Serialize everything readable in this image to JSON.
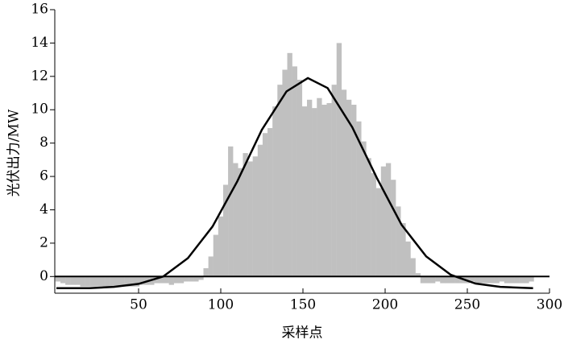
{
  "chart_data": {
    "type": "bar",
    "xlabel": "采样点",
    "ylabel": "光伏出力/MW",
    "xlim": [
      0,
      300
    ],
    "ylim": [
      -1,
      16
    ],
    "xticks": [
      50,
      100,
      150,
      200,
      250,
      300
    ],
    "yticks": [
      0,
      2,
      4,
      6,
      8,
      10,
      12,
      14,
      16
    ],
    "hline": 0,
    "series": [
      {
        "type": "bar",
        "color": "#c0c0c0",
        "x": [
          1,
          4,
          7,
          10,
          13,
          16,
          19,
          22,
          25,
          28,
          31,
          34,
          37,
          40,
          43,
          46,
          49,
          52,
          55,
          58,
          61,
          64,
          67,
          70,
          73,
          76,
          79,
          82,
          85,
          88,
          91,
          94,
          97,
          100,
          103,
          106,
          109,
          112,
          115,
          118,
          121,
          124,
          127,
          130,
          133,
          136,
          139,
          142,
          145,
          148,
          151,
          154,
          157,
          160,
          163,
          166,
          169,
          172,
          175,
          178,
          181,
          184,
          187,
          190,
          193,
          196,
          199,
          202,
          205,
          208,
          211,
          214,
          217,
          220,
          223,
          226,
          229,
          232,
          235,
          238,
          241,
          244,
          247,
          250,
          253,
          256,
          259,
          262,
          265,
          268,
          271,
          274,
          277,
          280,
          283,
          286,
          289
        ],
        "values": [
          -0.3,
          -0.4,
          -0.5,
          -0.5,
          -0.5,
          -0.6,
          -0.6,
          -0.6,
          -0.6,
          -0.6,
          -0.6,
          -0.6,
          -0.6,
          -0.6,
          -0.6,
          -0.6,
          -0.6,
          -0.5,
          -0.5,
          -0.5,
          -0.4,
          -0.4,
          -0.4,
          -0.5,
          -0.4,
          -0.4,
          -0.3,
          -0.3,
          -0.3,
          -0.2,
          0.5,
          1.2,
          2.5,
          3.6,
          5.5,
          7.8,
          6.8,
          6.5,
          7.4,
          6.9,
          7.2,
          7.9,
          8.6,
          8.9,
          10.2,
          11.5,
          12.4,
          13.4,
          12.6,
          11.8,
          10.2,
          10.6,
          10.1,
          10.7,
          10.3,
          10.4,
          11.5,
          14,
          11.2,
          10.6,
          10.3,
          9.3,
          8.1,
          7.1,
          6.2,
          5.3,
          6.6,
          6.8,
          5.8,
          4.2,
          3.2,
          2.1,
          1.1,
          0.2,
          -0.4,
          -0.4,
          -0.4,
          -0.3,
          -0.4,
          -0.4,
          -0.4,
          -0.4,
          -0.4,
          -0.4,
          -0.3,
          -0.4,
          -0.4,
          -0.4,
          -0.4,
          -0.4,
          -0.3,
          -0.4,
          -0.4,
          -0.4,
          -0.4,
          -0.4,
          -0.3
        ]
      },
      {
        "type": "line",
        "color": "#000000",
        "x": [
          0,
          20,
          35,
          50,
          65,
          80,
          95,
          110,
          125,
          140,
          153,
          165,
          180,
          195,
          210,
          225,
          240,
          255,
          270,
          285,
          290
        ],
        "values": [
          -0.7,
          -0.7,
          -0.62,
          -0.44,
          0.0,
          1.1,
          3.0,
          5.7,
          8.8,
          11.1,
          11.9,
          11.3,
          8.95,
          5.9,
          3.1,
          1.2,
          0.1,
          -0.42,
          -0.62,
          -0.68,
          -0.7
        ]
      }
    ]
  }
}
